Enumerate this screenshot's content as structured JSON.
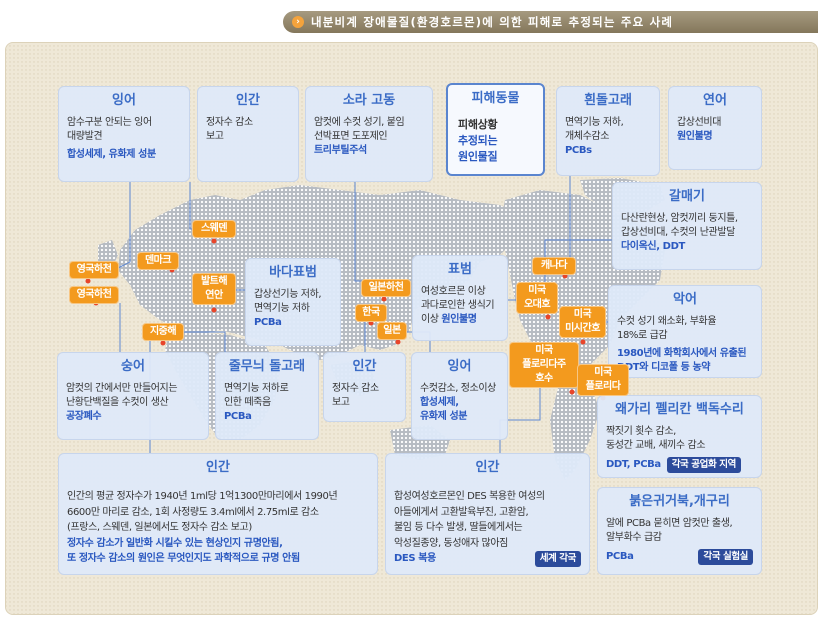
{
  "header": {
    "icon": "arrow-right-icon",
    "title": "내분비계 장애물질(환경호르몬)에 의한 피해로 추정되는 주요 사례"
  },
  "legend": {
    "title": "피해동물",
    "damage": "피해상황",
    "cause": [
      "추정되는",
      "원인물질"
    ]
  },
  "cases": [
    {
      "title": "잉어",
      "lines": [
        "암수구분 안되는 잉어",
        "대량발견"
      ],
      "cause": [
        "합성세제, 유화제 성분"
      ]
    },
    {
      "title": "인간",
      "lines": [
        "정자수 감소",
        "보고"
      ],
      "cause": []
    },
    {
      "title": "소라 고동",
      "lines": [
        "암컷에 수컷 성기, 붙임",
        "선박표면 도포제인"
      ],
      "cause": [
        "트리부틸주석"
      ]
    },
    {
      "title": "흰돌고래",
      "lines": [
        "면역기능 저하,",
        "개체수감소"
      ],
      "cause": [
        "PCBs"
      ]
    },
    {
      "title": "연어",
      "lines": [
        "갑상선비대"
      ],
      "cause": [
        "원인불명"
      ]
    },
    {
      "title": "갈매기",
      "lines": [
        "다산란현상, 암컷끼리 둥지틀,",
        "갑상선비대, 수컷의 난관발달"
      ],
      "cause": [
        "다이옥신, DDT"
      ]
    },
    {
      "title": "악어",
      "lines": [
        "수컷 성기 왜소화, 부화율",
        "18%로 급감"
      ],
      "cause": [
        "1980년에 화학회사에서 유출된",
        "DDT와 디코폴 등 농약"
      ]
    },
    {
      "title": "왜가리 펠리칸 백독수리",
      "lines": [
        "짝짓기 횟수 감소,",
        "동성간 교배, 새끼수 감소"
      ],
      "cause": [
        "DDT, PCBa"
      ],
      "badge": "각국 공업화 지역"
    },
    {
      "title": "붉은귀거북,개구리",
      "lines": [
        "알에 PCBa 묻히면 암컷만 출생,",
        "알부화수 급감"
      ],
      "cause": [
        "PCBa"
      ],
      "badge": "각국 실험실"
    },
    {
      "title": "바다표범",
      "lines": [
        "갑상선기능 저하,",
        "면역기능 저하"
      ],
      "cause": [
        "PCBa"
      ]
    },
    {
      "title": "표범",
      "lines": [
        "여성호르몬 이상",
        "과다로인한 생식기",
        "이상"
      ],
      "cause": [
        "원인불명"
      ]
    },
    {
      "title": "숭어",
      "lines": [
        "암컷의 간에서만 만들어지는",
        "난황단백질을 수컷이 생산"
      ],
      "cause": [
        "공장폐수"
      ]
    },
    {
      "title": "줄무늬 돌고래",
      "lines": [
        "면역기능 저하로",
        "인한 떼죽음"
      ],
      "cause": [
        "PCBa"
      ]
    },
    {
      "title": "인간",
      "lines": [
        "정자수 감소",
        "보고"
      ],
      "cause": []
    },
    {
      "title": "잉어",
      "lines": [
        "수컷감소, 정소이상"
      ],
      "cause": [
        "합성세제,",
        "유화제 성분"
      ]
    },
    {
      "title": "인간",
      "lines": [
        "인간의 평균 정자수가 1940년 1ml당 1억1300만마리에서 1990년",
        "6600만 마리로 감소, 1회 사정량도 3.4ml에서 2.75ml로 감소",
        "(프랑스, 스웨덴, 일본에서도 정자수 감소 보고)"
      ],
      "cause": [
        "정자수 감소가 일반화 시킬수 있는 현상인지 규명안됨,",
        "또 정자수 감소의 원인은 무엇인지도 과학적으로 규명 안됨"
      ]
    },
    {
      "title": "인간",
      "lines": [
        "합성여성호르몬인 DES 복용한 여성의",
        "아들에게서 고환발육부진, 고환암,",
        "불임 등 다수 발생, 딸들에게서는",
        "악성질종양, 동성애자 많아짐"
      ],
      "cause": [
        "DES 복용"
      ],
      "badge": "세계 각국"
    }
  ],
  "locations": [
    {
      "lines": [
        "영국하천"
      ]
    },
    {
      "lines": [
        "영국하천"
      ]
    },
    {
      "lines": [
        "덴마크"
      ]
    },
    {
      "lines": [
        "스웨덴"
      ]
    },
    {
      "lines": [
        "발트해",
        "연안"
      ]
    },
    {
      "lines": [
        "지중해"
      ]
    },
    {
      "lines": [
        "일본하천"
      ]
    },
    {
      "lines": [
        "한국"
      ]
    },
    {
      "lines": [
        "일본"
      ]
    },
    {
      "lines": [
        "캐나다"
      ]
    },
    {
      "lines": [
        "미국",
        "오대호"
      ]
    },
    {
      "lines": [
        "미국",
        "미시간호"
      ]
    },
    {
      "lines": [
        "미국",
        "플로리다주",
        "호수"
      ]
    },
    {
      "lines": [
        "미국",
        "플로리다"
      ]
    }
  ],
  "colors": {
    "title_blue": "#3b6cc6",
    "cause_blue": "#2a58c0",
    "location_orange": "#f39a1e",
    "badge_navy": "#2c4b9b"
  }
}
